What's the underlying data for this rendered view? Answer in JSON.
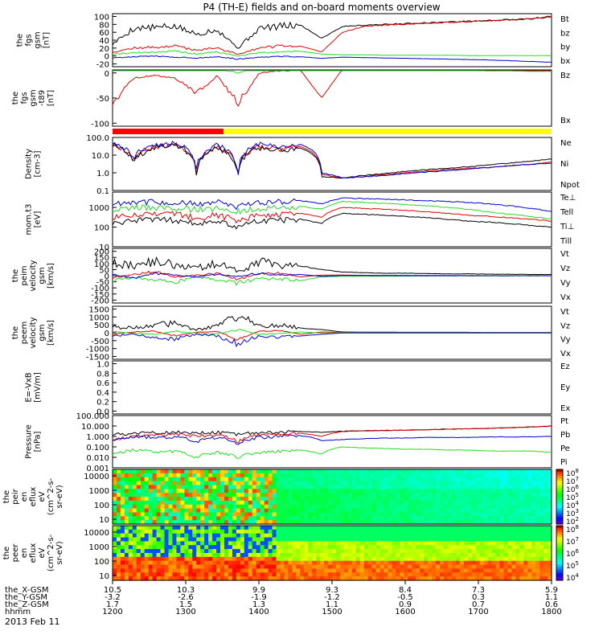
{
  "title": "P4 (TH-E) fields and on-board moments overview",
  "date_label": "2013 Feb 11",
  "time_axis": {
    "row_labels": [
      "the_X-GSM",
      "the_Y-GSM",
      "the_Z-GSM",
      "hhmm"
    ],
    "ticks": [
      {
        "x": "10.5",
        "y": "-3.2",
        "z": "1.7",
        "hhmm": "1200"
      },
      {
        "x": "10.3",
        "y": "-2.6",
        "z": "1.5",
        "hhmm": "1300"
      },
      {
        "x": "9.9",
        "y": "-1.9",
        "z": "1.3",
        "hhmm": "1400"
      },
      {
        "x": "9.3",
        "y": "-1.2",
        "z": "1.1",
        "hhmm": "1500"
      },
      {
        "x": "8.4",
        "y": "-0.5",
        "z": "0.9",
        "hhmm": "1600"
      },
      {
        "x": "7.3",
        "y": "0.3",
        "z": "0.7",
        "hhmm": "1700"
      },
      {
        "x": "5.9",
        "y": "1.1",
        "z": "0.6",
        "hhmm": "1800"
      }
    ]
  },
  "colors": {
    "black": "#000000",
    "red": "#e60000",
    "green": "#20dd20",
    "blue": "#0000d0",
    "bar_red": "#ff0000",
    "bar_yellow": "#ffff00"
  },
  "chart_data": [
    {
      "type": "line",
      "ylabel_lines": [
        "the",
        "fgs",
        "gsm",
        "[nT]"
      ],
      "yticks": [
        "100",
        "80",
        "60",
        "40",
        "20",
        "0",
        "-20"
      ],
      "series": [
        {
          "name": "Bt",
          "color": "black",
          "values": [
            30,
            70,
            72,
            75,
            55,
            68,
            20,
            70,
            75,
            78,
            45,
            75,
            78,
            80,
            82,
            84,
            86,
            88,
            90,
            92,
            95,
            100
          ]
        },
        {
          "name": "bz",
          "color": "red",
          "values": [
            10,
            20,
            22,
            25,
            15,
            20,
            5,
            20,
            25,
            25,
            10,
            60,
            75,
            78,
            80,
            83,
            85,
            87,
            89,
            91,
            94,
            99
          ]
        },
        {
          "name": "by",
          "color": "green",
          "values": [
            5,
            8,
            10,
            12,
            5,
            10,
            0,
            8,
            10,
            12,
            5,
            3,
            3,
            2,
            2,
            2,
            2,
            1,
            1,
            1,
            1,
            1
          ]
        },
        {
          "name": "bx",
          "color": "blue",
          "values": [
            -5,
            -2,
            0,
            -3,
            -5,
            -2,
            -8,
            -3,
            -1,
            -2,
            -6,
            -3,
            -4,
            -5,
            -6,
            -7,
            -8,
            -9,
            -10,
            -12,
            -14,
            -16
          ]
        }
      ]
    },
    {
      "type": "line",
      "ylabel_lines": [
        "the",
        "fgs",
        "gsm",
        "-t89",
        "[nT]"
      ],
      "yticks": [
        "0",
        "-50",
        "-100"
      ],
      "series": [
        {
          "name": "Bz",
          "color": "red",
          "values": [
            -60,
            -10,
            -5,
            -10,
            -40,
            -5,
            -60,
            0,
            5,
            5,
            -50,
            8,
            10,
            12,
            15,
            15,
            18,
            20,
            20,
            22,
            25,
            25
          ]
        },
        {
          "name": "Bx",
          "color": "green",
          "values": [
            10,
            15,
            12,
            15,
            5,
            10,
            0,
            12,
            15,
            15,
            5,
            8,
            8,
            7,
            6,
            6,
            5,
            5,
            4,
            4,
            3,
            3
          ]
        }
      ]
    },
    {
      "type": "line",
      "ylabel_lines": [
        "Density",
        "[cm-3]"
      ],
      "yticks": [
        "100.0",
        "10.0",
        "1.0",
        "0.1"
      ],
      "series": [
        {
          "name": "Ne",
          "color": "red",
          "values": [
            40,
            5,
            30,
            40,
            1,
            30,
            0.5,
            30,
            20,
            30,
            0.8,
            0.5,
            0.6,
            0.8,
            1,
            1.2,
            1.5,
            1.8,
            2,
            2.5,
            3,
            4
          ]
        },
        {
          "name": "Ni",
          "color": "black",
          "values": [
            35,
            4,
            25,
            35,
            0.8,
            25,
            0.4,
            25,
            18,
            25,
            0.6,
            0.5,
            0.7,
            0.9,
            1.2,
            1.5,
            1.8,
            2.2,
            2.8,
            3.5,
            4.5,
            6
          ]
        },
        {
          "name": "Npot",
          "color": "blue",
          "values": [
            50,
            6,
            40,
            45,
            1,
            35,
            0.5,
            40,
            25,
            40,
            1,
            0.5,
            0.6,
            0.7,
            0.9,
            1.1,
            1.3,
            1.6,
            2,
            2.5,
            3,
            3.5
          ]
        }
      ]
    },
    {
      "type": "line",
      "ylabel_lines": [
        "mom.t3",
        "[eV]"
      ],
      "yticks": [
        "1000",
        "100",
        "10"
      ],
      "series": [
        {
          "name": "Te⊥",
          "color": "red",
          "values": [
            300,
            400,
            500,
            450,
            300,
            400,
            200,
            400,
            450,
            500,
            300,
            1000,
            900,
            800,
            700,
            600,
            500,
            400,
            350,
            300,
            250,
            200
          ]
        },
        {
          "name": "Tell",
          "color": "black",
          "values": [
            150,
            200,
            250,
            220,
            150,
            200,
            100,
            200,
            220,
            250,
            150,
            500,
            450,
            400,
            350,
            300,
            250,
            200,
            180,
            150,
            120,
            100
          ]
        },
        {
          "name": "Ti⊥",
          "color": "blue",
          "values": [
            1500,
            2000,
            1800,
            1700,
            1500,
            1800,
            1000,
            1800,
            2000,
            2200,
            1500,
            3000,
            2800,
            2600,
            2400,
            2200,
            2000,
            1800,
            1500,
            1200,
            900,
            600
          ]
        },
        {
          "name": "Till",
          "color": "green",
          "values": [
            800,
            1000,
            900,
            850,
            800,
            900,
            600,
            900,
            1000,
            1100,
            800,
            2000,
            1800,
            1600,
            1400,
            1200,
            1000,
            800,
            600,
            450,
            350,
            250
          ]
        }
      ]
    },
    {
      "type": "line",
      "ylabel_lines": [
        "the",
        "peim",
        "velocity",
        "gsm",
        "[km/s]"
      ],
      "yticks": [
        "200",
        "150",
        "100",
        "50",
        "0",
        "-50",
        "-100",
        "-150",
        "-200"
      ],
      "series": [
        {
          "name": "Vt",
          "color": "black",
          "values": [
            100,
            80,
            120,
            90,
            60,
            100,
            40,
            110,
            90,
            80,
            50,
            30,
            25,
            20,
            20,
            18,
            15,
            15,
            12,
            12,
            10,
            10
          ]
        },
        {
          "name": "Vz",
          "color": "red",
          "values": [
            -20,
            10,
            30,
            -10,
            5,
            20,
            -30,
            15,
            20,
            -10,
            5,
            5,
            3,
            2,
            2,
            1,
            1,
            1,
            0,
            0,
            0,
            0
          ]
        },
        {
          "name": "Vy",
          "color": "green",
          "values": [
            -40,
            -20,
            -30,
            -50,
            -10,
            -30,
            -60,
            -20,
            -30,
            -40,
            -10,
            -5,
            -5,
            -4,
            -3,
            -3,
            -2,
            -2,
            -2,
            -1,
            -1,
            -1
          ]
        },
        {
          "name": "Vx",
          "color": "blue",
          "values": [
            10,
            -20,
            20,
            5,
            -10,
            10,
            -5,
            20,
            5,
            10,
            -5,
            2,
            1,
            1,
            0,
            0,
            0,
            0,
            0,
            0,
            0,
            0
          ]
        }
      ]
    },
    {
      "type": "line",
      "ylabel_lines": [
        "the",
        "peem",
        "velocity",
        "gsm",
        "[km/s]"
      ],
      "yticks": [
        "1500",
        "1000",
        "500",
        "0",
        "-500",
        "-1000",
        "-1500"
      ],
      "series": [
        {
          "name": "Vt",
          "color": "black",
          "values": [
            400,
            300,
            500,
            600,
            200,
            400,
            1100,
            400,
            500,
            300,
            200,
            50,
            40,
            40,
            30,
            30,
            30,
            30,
            20,
            20,
            20,
            20
          ]
        },
        {
          "name": "Vz",
          "color": "red",
          "values": [
            -100,
            50,
            100,
            -200,
            30,
            80,
            -400,
            100,
            150,
            -100,
            50,
            10,
            5,
            5,
            5,
            5,
            5,
            5,
            5,
            5,
            5,
            5
          ]
        },
        {
          "name": "Vy",
          "color": "green",
          "values": [
            100,
            -50,
            -100,
            100,
            -30,
            -80,
            200,
            -100,
            -50,
            50,
            -20,
            5,
            5,
            5,
            5,
            5,
            5,
            5,
            5,
            5,
            5,
            5
          ]
        },
        {
          "name": "Vx",
          "color": "blue",
          "values": [
            -200,
            -100,
            -300,
            -400,
            -100,
            -200,
            -700,
            -200,
            -300,
            -200,
            -100,
            -10,
            -10,
            -10,
            -10,
            -10,
            -10,
            -10,
            -10,
            -10,
            -10,
            -10
          ]
        }
      ]
    },
    {
      "type": "line",
      "ylabel_lines": [
        "E=-VxB",
        "[mV/m]"
      ],
      "yticks": [
        "1.0",
        "0.8",
        "0.6",
        "0.4",
        "0.2",
        "0.0"
      ],
      "series": [
        {
          "name": "Ez",
          "color": "red",
          "values": []
        },
        {
          "name": "Ey",
          "color": "green",
          "values": []
        },
        {
          "name": "Ex",
          "color": "blue",
          "values": []
        }
      ]
    },
    {
      "type": "line",
      "ylabel_lines": [
        "Pressure",
        "[nPa]"
      ],
      "yticks": [
        "100.000",
        "10.000",
        "1.000",
        "0.100",
        "0.010",
        "0.001"
      ],
      "series": [
        {
          "name": "Pt",
          "color": "black",
          "values": [
            1.5,
            2,
            2.2,
            2.5,
            2,
            2.5,
            1.5,
            2.5,
            2.8,
            3,
            2.5,
            3.2,
            3.5,
            3.8,
            4,
            4.5,
            5,
            5.5,
            6,
            7,
            8,
            10
          ]
        },
        {
          "name": "Pb",
          "color": "red",
          "values": [
            0.5,
            1,
            1.2,
            1.5,
            1,
            1.5,
            0.3,
            1.5,
            1.8,
            2,
            1,
            3,
            3.3,
            3.6,
            3.9,
            4.3,
            4.8,
            5.3,
            5.8,
            6.8,
            7.8,
            9.5
          ]
        },
        {
          "name": "Pe",
          "color": "green",
          "values": [
            0.02,
            0.05,
            0.03,
            0.04,
            0.01,
            0.03,
            0.01,
            0.03,
            0.04,
            0.05,
            0.02,
            0.1,
            0.08,
            0.07,
            0.06,
            0.06,
            0.05,
            0.05,
            0.04,
            0.04,
            0.04,
            0.03
          ]
        },
        {
          "name": "Pi",
          "color": "blue",
          "values": [
            0.5,
            1,
            0.8,
            0.9,
            0.3,
            0.8,
            0.2,
            0.8,
            1,
            1.2,
            0.4,
            0.5,
            0.6,
            0.7,
            0.7,
            0.8,
            0.8,
            0.8,
            0.9,
            0.9,
            0.9,
            1
          ]
        }
      ]
    },
    {
      "type": "heatmap",
      "ylabel_lines": [
        "the",
        "peir",
        "en",
        "eflux",
        "eV",
        "(cm^2-s-",
        "sr-eV)"
      ],
      "yticks": [
        "10000",
        "1000",
        "100",
        "10"
      ],
      "colorbar_ticks": [
        "10^8",
        "10^7",
        "10^6",
        "10^5",
        "10^4",
        "10^3",
        "10^2"
      ]
    },
    {
      "type": "heatmap",
      "ylabel_lines": [
        "the",
        "peer",
        "en",
        "eflux",
        "eV",
        "(cm^2-s-",
        "sr-eV)"
      ],
      "yticks": [
        "10000",
        "1000",
        "100",
        "10"
      ],
      "colorbar_ticks": [
        "10^8",
        "10^7",
        "10^6",
        "10^5",
        "10^4"
      ]
    }
  ]
}
